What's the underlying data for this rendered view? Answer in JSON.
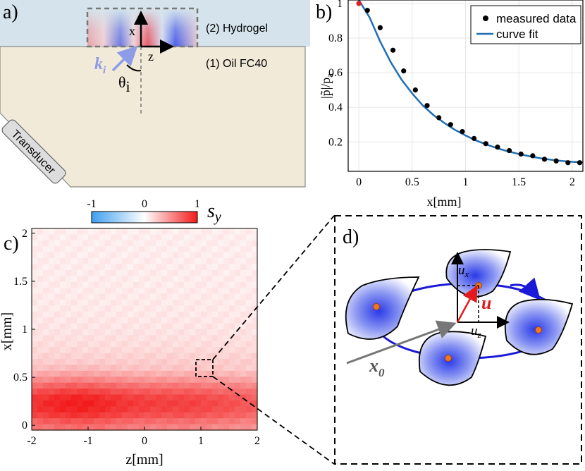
{
  "panel_a": {
    "label": "a)",
    "hydrogel_label": "(2) Hydrogel",
    "oil_label": "(1) Oil FC40",
    "transducer_label": "Transducer",
    "axis_x": "x",
    "axis_z": "z",
    "wavevector_label": "k",
    "wavevector_sub": "i",
    "angle_label": "θ",
    "angle_sub": "i",
    "colors": {
      "hydrogel_bg": "#d5e4ec",
      "oil_bg": "#f2ead8",
      "wave_arrow": "#8c9ce6"
    }
  },
  "panel_b": {
    "label": "b)",
    "chart_data": {
      "type": "scatter",
      "xlabel": "x[mm]",
      "ylabel": "|p̃|/p",
      "ylabel_sub": "a",
      "xlim": [
        -0.1,
        2.1
      ],
      "ylim": [
        0.03,
        1.02
      ],
      "xticks": [
        "0",
        "0.5",
        "1",
        "1.5",
        "2"
      ],
      "yticks": [
        "0.2",
        "0.4",
        "0.6",
        "0.8",
        "1"
      ],
      "grid": true,
      "legend_position": "top-right",
      "series": [
        {
          "name": "measured data",
          "marker": "dot",
          "color": "#000000",
          "x": [
            0.08,
            0.2,
            0.32,
            0.42,
            0.53,
            0.64,
            0.75,
            0.86,
            0.97,
            1.08,
            1.19,
            1.3,
            1.41,
            1.52,
            1.63,
            1.74,
            1.85,
            1.96,
            2.07
          ],
          "y": [
            0.96,
            0.86,
            0.73,
            0.61,
            0.5,
            0.41,
            0.34,
            0.3,
            0.26,
            0.22,
            0.19,
            0.17,
            0.15,
            0.13,
            0.12,
            0.1,
            0.09,
            0.08,
            0.08
          ]
        },
        {
          "name": "curve fit",
          "marker": "line",
          "color": "#1f6fb4",
          "x": [
            0.0,
            0.1,
            0.2,
            0.3,
            0.4,
            0.5,
            0.6,
            0.7,
            0.8,
            0.9,
            1.0,
            1.1,
            1.2,
            1.3,
            1.4,
            1.5,
            1.6,
            1.7,
            1.8,
            1.9,
            2.0,
            2.1
          ],
          "y": [
            1.1,
            0.92,
            0.78,
            0.66,
            0.56,
            0.48,
            0.41,
            0.355,
            0.31,
            0.27,
            0.237,
            0.208,
            0.184,
            0.163,
            0.145,
            0.13,
            0.117,
            0.106,
            0.097,
            0.09,
            0.085,
            0.082
          ]
        },
        {
          "name": "",
          "marker": "dot",
          "color": "#e41a1c",
          "x": [
            0.0
          ],
          "y": [
            1.0
          ]
        }
      ]
    }
  },
  "panel_c": {
    "label": "c)",
    "colorbar": {
      "min_label": "-1",
      "mid_label": "0",
      "max_label": "1",
      "symbol": "s",
      "symbol_sub": "y",
      "neg_color": "#3fa0ef",
      "pos_color": "#f21a1a"
    },
    "chart_data": {
      "type": "heatmap",
      "xlabel": "z[mm]",
      "ylabel": "x[mm]",
      "xlim": [
        -2,
        2
      ],
      "ylim": [
        -0.05,
        2.05
      ],
      "xticks": [
        "-2",
        "-1",
        "0",
        "1",
        "2"
      ],
      "yticks": [
        "0",
        "0.5",
        "1",
        "1.5",
        "2"
      ],
      "row_profile_x": [
        0.0,
        0.1,
        0.2,
        0.3,
        0.4,
        0.5,
        0.6,
        0.8,
        1.0,
        1.2,
        1.5,
        2.0
      ],
      "row_profile_value": [
        0.55,
        0.75,
        0.85,
        0.8,
        0.62,
        0.4,
        0.25,
        0.16,
        0.12,
        0.1,
        0.09,
        0.08
      ]
    }
  },
  "panel_d": {
    "label": "d)",
    "vector_label": "u",
    "ux_label": "u",
    "ux_sub": "x",
    "uz_label": "u",
    "uz_sub": "z",
    "x0_label": "x",
    "x0_sub": "0"
  }
}
